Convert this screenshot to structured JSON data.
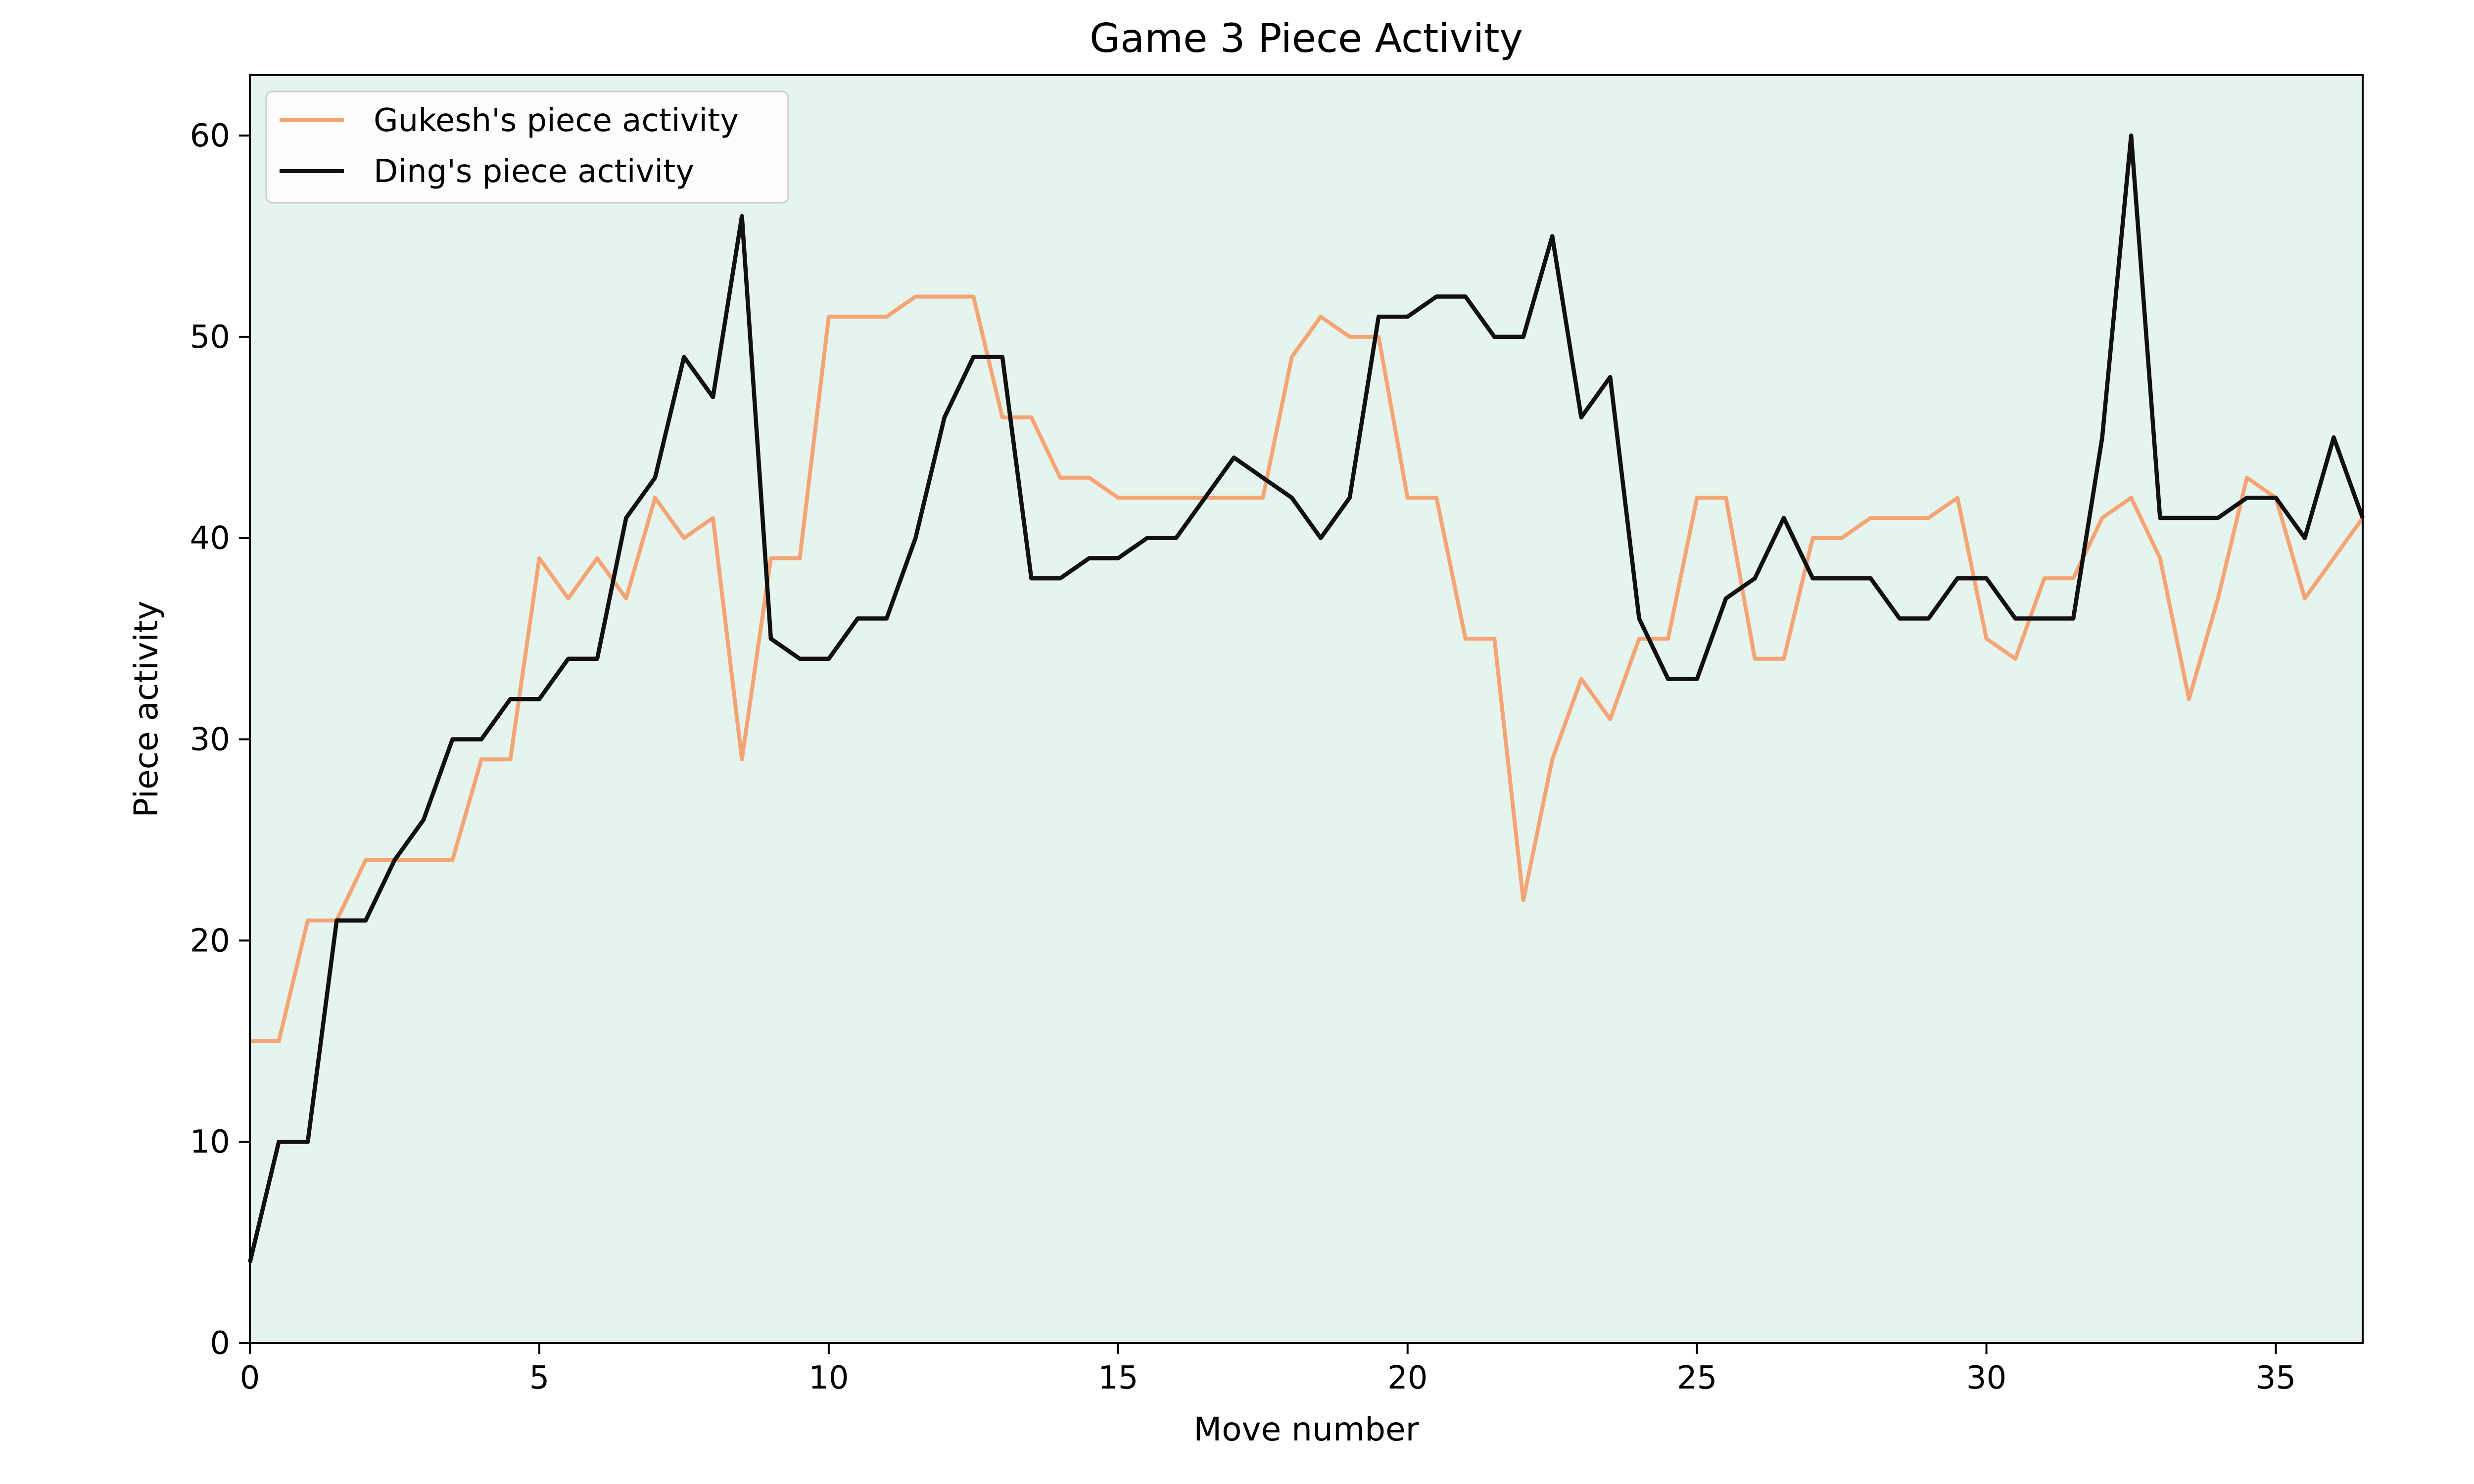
{
  "chart_data": {
    "type": "line",
    "title": "Game 3 Piece Activity",
    "xlabel": "Move number",
    "ylabel": "Piece activity",
    "xlim": [
      0,
      36.5
    ],
    "ylim": [
      0,
      63
    ],
    "xticks": [
      0,
      5,
      10,
      15,
      20,
      25,
      30,
      35
    ],
    "yticks": [
      0,
      10,
      20,
      30,
      40,
      50,
      60
    ],
    "grid": false,
    "legend_position": "top-left",
    "plot_background": "#e5f5ee",
    "x": [
      0,
      0.5,
      1,
      1.5,
      2,
      2.5,
      3,
      3.5,
      4,
      4.5,
      5,
      5.5,
      6,
      6.5,
      7,
      7.5,
      8,
      8.5,
      9,
      9.5,
      10,
      10.5,
      11,
      11.5,
      12,
      12.5,
      13,
      13.5,
      14,
      14.5,
      15,
      15.5,
      16,
      16.5,
      17,
      17.5,
      18,
      18.5,
      19,
      19.5,
      20,
      20.5,
      21,
      21.5,
      22,
      22.5,
      23,
      23.5,
      24,
      24.5,
      25,
      25.5,
      26,
      26.5,
      27,
      27.5,
      28,
      28.5,
      29,
      29.5,
      30,
      30.5,
      31,
      31.5,
      32,
      32.5,
      33,
      33.5,
      34,
      34.5,
      35,
      35.5,
      36,
      36.5
    ],
    "series": [
      {
        "name": "Gukesh's piece activity",
        "color": "#f4a475",
        "values": [
          15,
          15,
          21,
          21,
          24,
          24,
          24,
          24,
          29,
          29,
          39,
          37,
          39,
          37,
          42,
          40,
          41,
          29,
          39,
          39,
          51,
          51,
          51,
          52,
          52,
          52,
          46,
          46,
          43,
          43,
          42,
          42,
          42,
          42,
          42,
          42,
          49,
          51,
          50,
          50,
          42,
          42,
          35,
          35,
          22,
          29,
          33,
          31,
          35,
          35,
          42,
          42,
          34,
          34,
          40,
          40,
          41,
          41,
          41,
          42,
          35,
          34,
          38,
          38,
          41,
          42,
          39,
          32,
          37,
          43,
          42,
          37,
          39,
          41
        ]
      },
      {
        "name": "Ding's piece activity",
        "color": "#111111",
        "values": [
          4,
          10,
          10,
          21,
          21,
          24,
          26,
          30,
          30,
          32,
          32,
          34,
          34,
          41,
          43,
          49,
          47,
          56,
          35,
          34,
          34,
          36,
          36,
          40,
          46,
          49,
          49,
          38,
          38,
          39,
          39,
          40,
          40,
          42,
          44,
          43,
          42,
          40,
          42,
          51,
          51,
          52,
          52,
          50,
          50,
          55,
          46,
          48,
          36,
          33,
          33,
          37,
          38,
          41,
          38,
          38,
          38,
          36,
          36,
          38,
          38,
          36,
          36,
          36,
          45,
          60,
          41,
          41,
          41,
          42,
          42,
          40,
          45,
          41
        ]
      }
    ]
  }
}
